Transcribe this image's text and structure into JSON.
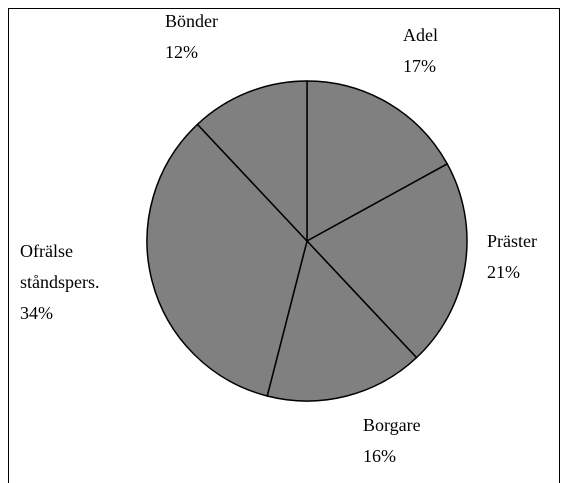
{
  "chart_data": {
    "type": "pie",
    "categories": [
      "Adel",
      "Präster",
      "Borgare",
      "Ofrälse ståndspers.",
      "Bönder"
    ],
    "values": [
      17,
      21,
      16,
      34,
      12
    ],
    "value_labels": [
      "17%",
      "21%",
      "16%",
      "34%",
      "12%"
    ],
    "color": "#808080"
  }
}
